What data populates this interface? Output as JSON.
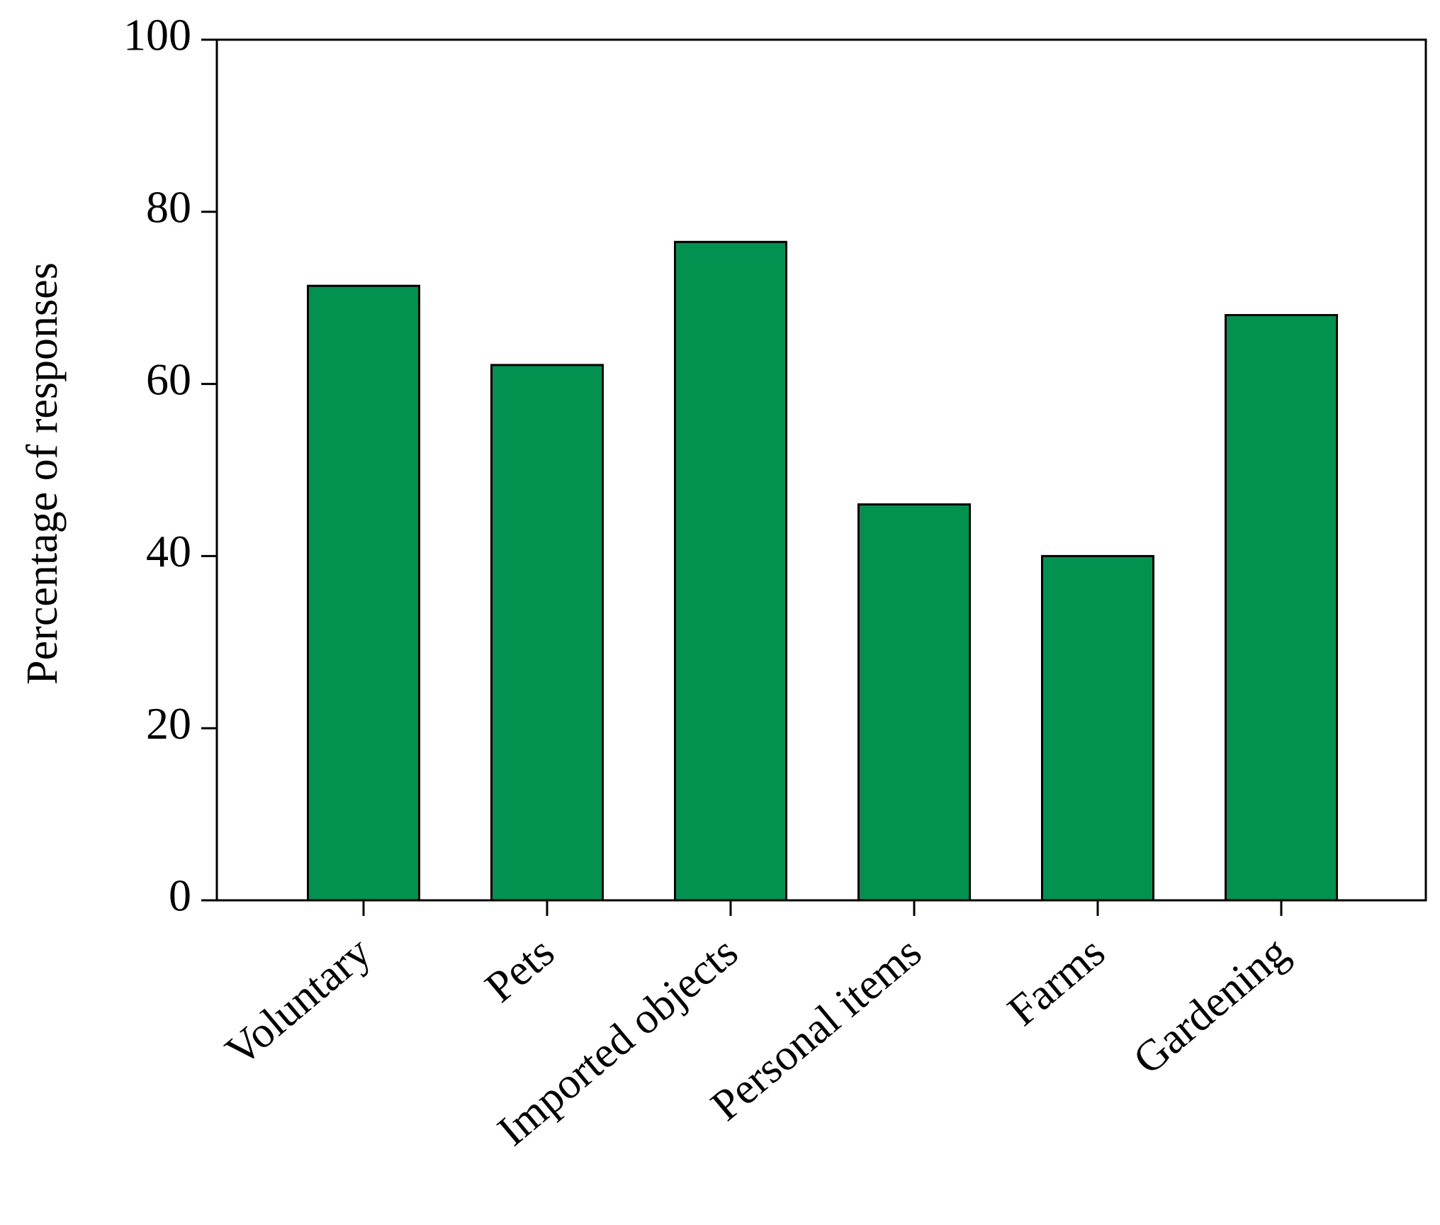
{
  "chart_data": {
    "type": "bar",
    "y_label": "Percentage of responses",
    "categories": [
      "Voluntary",
      "Pets",
      "Imported objects",
      "Personal items",
      "Farms",
      "Gardening"
    ],
    "values": [
      71.4,
      62.2,
      76.5,
      46.0,
      40.0,
      68.0
    ],
    "color": "#039150",
    "ylim": [
      0,
      100
    ],
    "yticks": [
      0,
      20,
      40,
      60,
      80,
      100
    ],
    "grid": false
  }
}
